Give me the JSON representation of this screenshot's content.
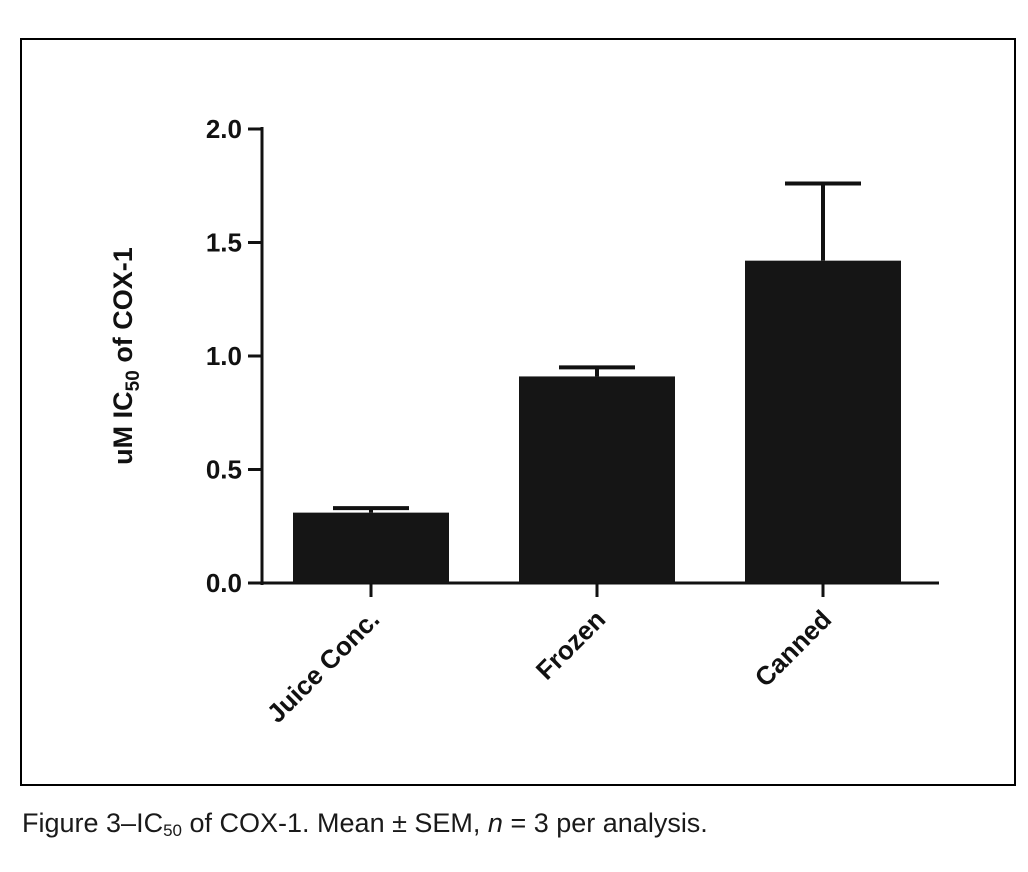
{
  "chart_data": {
    "type": "bar",
    "categories": [
      "Juice Conc.",
      "Frozen",
      "Canned"
    ],
    "series": [
      {
        "values": [
          0.31,
          0.91,
          1.42
        ],
        "error": [
          0.02,
          0.04,
          0.34
        ]
      }
    ],
    "ylabel": {
      "main": "uM IC",
      "sub": "50",
      "rest": " of COX-1"
    },
    "ylim": [
      0.0,
      2.0
    ],
    "yticks": [
      "0.0",
      "0.5",
      "1.0",
      "1.5",
      "2.0"
    ],
    "grid": false,
    "bar_color": "#151515"
  },
  "caption": {
    "figure": "Figure 3–IC",
    "sub": "50",
    "text1": " of COX-1. Mean ± SEM, ",
    "n": "n",
    "text2": " = 3 per analysis."
  }
}
